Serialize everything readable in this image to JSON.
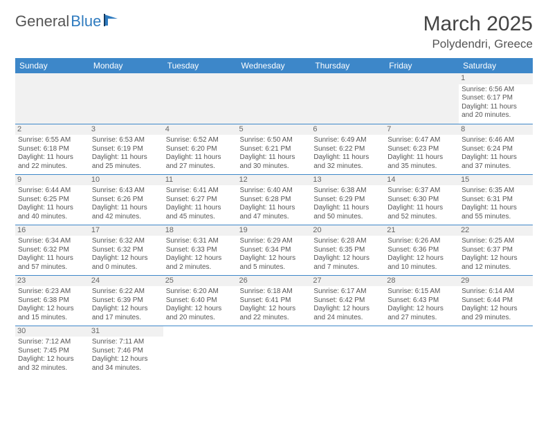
{
  "logo": {
    "text1": "General",
    "text2": "Blue"
  },
  "title": "March 2025",
  "subtitle": "Polydendri, Greece",
  "colors": {
    "header_bg": "#3d87c9",
    "header_fg": "#ffffff",
    "border": "#3d87c9",
    "daynum_bg": "#f1f1f1"
  },
  "weekdays": [
    "Sunday",
    "Monday",
    "Tuesday",
    "Wednesday",
    "Thursday",
    "Friday",
    "Saturday"
  ],
  "weeks": [
    [
      null,
      null,
      null,
      null,
      null,
      null,
      {
        "n": "1",
        "sr": "Sunrise: 6:56 AM",
        "ss": "Sunset: 6:17 PM",
        "dl": "Daylight: 11 hours and 20 minutes."
      }
    ],
    [
      {
        "n": "2",
        "sr": "Sunrise: 6:55 AM",
        "ss": "Sunset: 6:18 PM",
        "dl": "Daylight: 11 hours and 22 minutes."
      },
      {
        "n": "3",
        "sr": "Sunrise: 6:53 AM",
        "ss": "Sunset: 6:19 PM",
        "dl": "Daylight: 11 hours and 25 minutes."
      },
      {
        "n": "4",
        "sr": "Sunrise: 6:52 AM",
        "ss": "Sunset: 6:20 PM",
        "dl": "Daylight: 11 hours and 27 minutes."
      },
      {
        "n": "5",
        "sr": "Sunrise: 6:50 AM",
        "ss": "Sunset: 6:21 PM",
        "dl": "Daylight: 11 hours and 30 minutes."
      },
      {
        "n": "6",
        "sr": "Sunrise: 6:49 AM",
        "ss": "Sunset: 6:22 PM",
        "dl": "Daylight: 11 hours and 32 minutes."
      },
      {
        "n": "7",
        "sr": "Sunrise: 6:47 AM",
        "ss": "Sunset: 6:23 PM",
        "dl": "Daylight: 11 hours and 35 minutes."
      },
      {
        "n": "8",
        "sr": "Sunrise: 6:46 AM",
        "ss": "Sunset: 6:24 PM",
        "dl": "Daylight: 11 hours and 37 minutes."
      }
    ],
    [
      {
        "n": "9",
        "sr": "Sunrise: 6:44 AM",
        "ss": "Sunset: 6:25 PM",
        "dl": "Daylight: 11 hours and 40 minutes."
      },
      {
        "n": "10",
        "sr": "Sunrise: 6:43 AM",
        "ss": "Sunset: 6:26 PM",
        "dl": "Daylight: 11 hours and 42 minutes."
      },
      {
        "n": "11",
        "sr": "Sunrise: 6:41 AM",
        "ss": "Sunset: 6:27 PM",
        "dl": "Daylight: 11 hours and 45 minutes."
      },
      {
        "n": "12",
        "sr": "Sunrise: 6:40 AM",
        "ss": "Sunset: 6:28 PM",
        "dl": "Daylight: 11 hours and 47 minutes."
      },
      {
        "n": "13",
        "sr": "Sunrise: 6:38 AM",
        "ss": "Sunset: 6:29 PM",
        "dl": "Daylight: 11 hours and 50 minutes."
      },
      {
        "n": "14",
        "sr": "Sunrise: 6:37 AM",
        "ss": "Sunset: 6:30 PM",
        "dl": "Daylight: 11 hours and 52 minutes."
      },
      {
        "n": "15",
        "sr": "Sunrise: 6:35 AM",
        "ss": "Sunset: 6:31 PM",
        "dl": "Daylight: 11 hours and 55 minutes."
      }
    ],
    [
      {
        "n": "16",
        "sr": "Sunrise: 6:34 AM",
        "ss": "Sunset: 6:32 PM",
        "dl": "Daylight: 11 hours and 57 minutes."
      },
      {
        "n": "17",
        "sr": "Sunrise: 6:32 AM",
        "ss": "Sunset: 6:32 PM",
        "dl": "Daylight: 12 hours and 0 minutes."
      },
      {
        "n": "18",
        "sr": "Sunrise: 6:31 AM",
        "ss": "Sunset: 6:33 PM",
        "dl": "Daylight: 12 hours and 2 minutes."
      },
      {
        "n": "19",
        "sr": "Sunrise: 6:29 AM",
        "ss": "Sunset: 6:34 PM",
        "dl": "Daylight: 12 hours and 5 minutes."
      },
      {
        "n": "20",
        "sr": "Sunrise: 6:28 AM",
        "ss": "Sunset: 6:35 PM",
        "dl": "Daylight: 12 hours and 7 minutes."
      },
      {
        "n": "21",
        "sr": "Sunrise: 6:26 AM",
        "ss": "Sunset: 6:36 PM",
        "dl": "Daylight: 12 hours and 10 minutes."
      },
      {
        "n": "22",
        "sr": "Sunrise: 6:25 AM",
        "ss": "Sunset: 6:37 PM",
        "dl": "Daylight: 12 hours and 12 minutes."
      }
    ],
    [
      {
        "n": "23",
        "sr": "Sunrise: 6:23 AM",
        "ss": "Sunset: 6:38 PM",
        "dl": "Daylight: 12 hours and 15 minutes."
      },
      {
        "n": "24",
        "sr": "Sunrise: 6:22 AM",
        "ss": "Sunset: 6:39 PM",
        "dl": "Daylight: 12 hours and 17 minutes."
      },
      {
        "n": "25",
        "sr": "Sunrise: 6:20 AM",
        "ss": "Sunset: 6:40 PM",
        "dl": "Daylight: 12 hours and 20 minutes."
      },
      {
        "n": "26",
        "sr": "Sunrise: 6:18 AM",
        "ss": "Sunset: 6:41 PM",
        "dl": "Daylight: 12 hours and 22 minutes."
      },
      {
        "n": "27",
        "sr": "Sunrise: 6:17 AM",
        "ss": "Sunset: 6:42 PM",
        "dl": "Daylight: 12 hours and 24 minutes."
      },
      {
        "n": "28",
        "sr": "Sunrise: 6:15 AM",
        "ss": "Sunset: 6:43 PM",
        "dl": "Daylight: 12 hours and 27 minutes."
      },
      {
        "n": "29",
        "sr": "Sunrise: 6:14 AM",
        "ss": "Sunset: 6:44 PM",
        "dl": "Daylight: 12 hours and 29 minutes."
      }
    ],
    [
      {
        "n": "30",
        "sr": "Sunrise: 7:12 AM",
        "ss": "Sunset: 7:45 PM",
        "dl": "Daylight: 12 hours and 32 minutes."
      },
      {
        "n": "31",
        "sr": "Sunrise: 7:11 AM",
        "ss": "Sunset: 7:46 PM",
        "dl": "Daylight: 12 hours and 34 minutes."
      },
      null,
      null,
      null,
      null,
      null
    ]
  ]
}
